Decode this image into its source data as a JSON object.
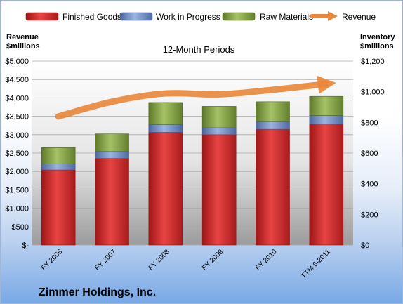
{
  "chart_data": {
    "type": "bar",
    "subtitle": "12-Month Periods",
    "company": "Zimmer Holdings, Inc.",
    "categories": [
      "FY 2006",
      "FY 2007",
      "FY 2008",
      "FY 2009",
      "FY 2010",
      "TTM 6-2011"
    ],
    "left_axis": {
      "title_line1": "Revenue",
      "title_line2": "$millions",
      "range": [
        0,
        5000
      ],
      "ticks": [
        "$-",
        "$500",
        "$1,000",
        "$1,500",
        "$2,000",
        "$2,500",
        "$3,000",
        "$3,500",
        "$4,000",
        "$4,500",
        "$5,000"
      ]
    },
    "right_axis": {
      "title_line1": "Inventory",
      "title_line2": "$millions",
      "range": [
        0,
        1200
      ],
      "ticks": [
        "$0",
        "$200",
        "$400",
        "$600",
        "$800",
        "$1,000",
        "$1,200"
      ]
    },
    "stack_series": [
      {
        "name": "Finished Goods",
        "color": "#e03a3a",
        "values": [
          490,
          565,
          735,
          720,
          755,
          790
        ]
      },
      {
        "name": "Work in Progress",
        "color": "#6f8fc8",
        "values": [
          40,
          45,
          50,
          45,
          50,
          55
        ]
      },
      {
        "name": "Raw Materials",
        "color": "#8cad4e",
        "values": [
          105,
          115,
          145,
          140,
          130,
          125
        ]
      }
    ],
    "line_series": {
      "name": "Revenue",
      "color": "#e8883c",
      "axis": "left",
      "values": [
        3495,
        3897,
        4121,
        4095,
        4220,
        4380
      ]
    },
    "grid": true,
    "legend_position": "top"
  }
}
